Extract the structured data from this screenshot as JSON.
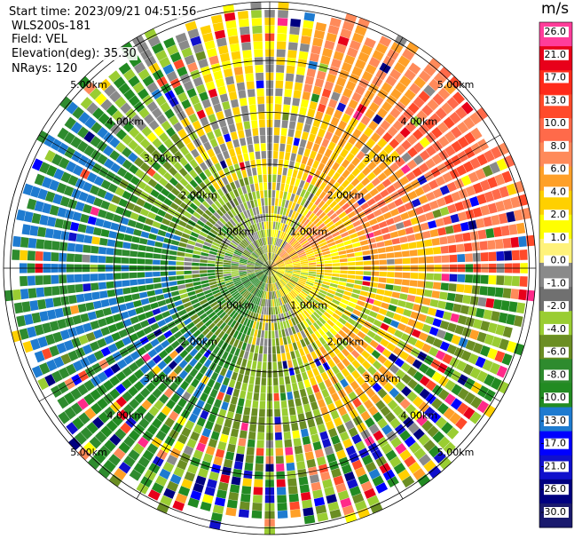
{
  "header": {
    "start_time": "Start time: 2023/09/21 04:51:56",
    "instrument": "WLS200s-181",
    "field": "Field: VEL",
    "elevation": "Elevation(deg): 35.30",
    "nrays": "NRays: 120"
  },
  "colorbar": {
    "unit": "m/s",
    "labels": [
      "26.0",
      "21.0",
      "17.0",
      "13.0",
      "10.0",
      "8.0",
      "6.0",
      "4.0",
      "2.0",
      "1.0",
      "0.0",
      "-1.0",
      "-2.0",
      "-4.0",
      "-6.0",
      "-8.0",
      "-10.0",
      "-13.0",
      "-17.0",
      "-21.0",
      "-26.0",
      "-30.0"
    ],
    "colors": [
      "#ff3d9a",
      "#e8001a",
      "#ff2a1a",
      "#ff4a2a",
      "#ff6a4a",
      "#ff8a5a",
      "#ffa028",
      "#ffd000",
      "#ffff00",
      "#fff27a",
      "#8a8a8a",
      "#707070",
      "#9acd32",
      "#6b8e23",
      "#2e8b2e",
      "#228b22",
      "#1e7bd0",
      "#0000ff",
      "#1010cc",
      "#000080",
      "#1a1a6e"
    ]
  },
  "chart_data": {
    "type": "ppi",
    "field": "VEL",
    "units": "m/s",
    "elevation_deg": 35.3,
    "nrays": 120,
    "range_rings_km": [
      "1.00km",
      "2.00km",
      "3.00km",
      "4.00km",
      "5.00km"
    ],
    "max_range_km": 5.3,
    "colorbar_ticks": [
      26.0,
      21.0,
      17.0,
      13.0,
      10.0,
      8.0,
      6.0,
      4.0,
      2.0,
      1.0,
      0.0,
      -1.0,
      -2.0,
      -4.0,
      -6.0,
      -8.0,
      -10.0,
      -13.0,
      -17.0,
      -21.0,
      -26.0,
      -30.0
    ],
    "pattern": "positive (towards yellow/orange/red) in east and north-east sectors, negative (green/blue) in west and south-west sectors, noisy far-range gates"
  }
}
